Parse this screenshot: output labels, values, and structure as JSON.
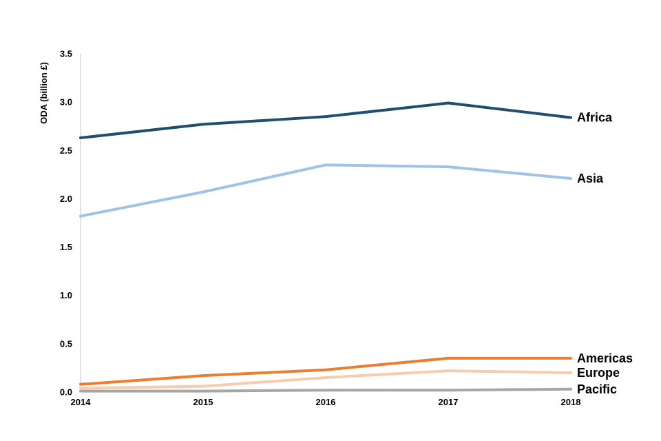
{
  "chart_data": {
    "type": "line",
    "title": "",
    "xlabel": "",
    "ylabel": "ODA (billion £)",
    "x": [
      2014,
      2015,
      2016,
      2017,
      2018
    ],
    "xlim": [
      2014,
      2018
    ],
    "ylim": [
      0,
      3.5
    ],
    "ytick_step": 0.5,
    "ytick_labels": [
      "0.0",
      "0.5",
      "1.0",
      "1.5",
      "2.0",
      "2.5",
      "3.0",
      "3.5"
    ],
    "grid": "off",
    "legend_position": "line-end-labels-right",
    "axis_color": "#d9d9d9",
    "text_color": "#000000",
    "series": [
      {
        "name": "Africa",
        "color": "#1f4e6e",
        "values": [
          2.63,
          2.77,
          2.85,
          2.99,
          2.84
        ]
      },
      {
        "name": "Asia",
        "color": "#9dc3e6",
        "values": [
          1.82,
          2.07,
          2.35,
          2.33,
          2.21
        ]
      },
      {
        "name": "Americas",
        "color": "#ed7d31",
        "values": [
          0.08,
          0.17,
          0.23,
          0.35,
          0.35
        ]
      },
      {
        "name": "Europe",
        "color": "#f8cbad",
        "values": [
          0.04,
          0.06,
          0.15,
          0.22,
          0.2
        ]
      },
      {
        "name": "Pacific",
        "color": "#a6a6a6",
        "values": [
          0.01,
          0.01,
          0.02,
          0.02,
          0.03
        ]
      }
    ]
  }
}
